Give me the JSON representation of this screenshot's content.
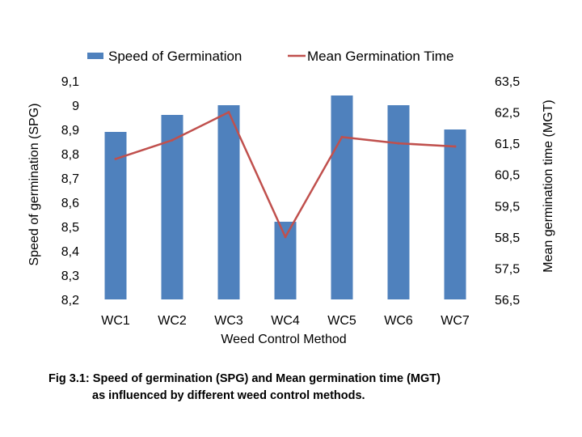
{
  "chart_data": {
    "type": "bar+line",
    "title": "",
    "categories": [
      "WC1",
      "WC2",
      "WC3",
      "WC4",
      "WC5",
      "WC6",
      "WC7"
    ],
    "xlabel": "Weed Control Method",
    "ylabel": "Speed of germination (SPG)",
    "y2label": "Mean germination time (MGT)",
    "ylim": [
      8.2,
      9.1
    ],
    "y2lim": [
      56.5,
      63.5
    ],
    "yticks": [
      "8,2",
      "8,3",
      "8,4",
      "8,5",
      "8,6",
      "8,7",
      "8,8",
      "8,9",
      "9",
      "9,1"
    ],
    "y2ticks": [
      "56,5",
      "57,5",
      "58,5",
      "59,5",
      "60,5",
      "61,5",
      "62,5",
      "63,5"
    ],
    "legend_position": "top-center",
    "series": [
      {
        "name": "Speed of Germination",
        "kind": "bar",
        "axis": "left",
        "color": "#4F81BD",
        "values": [
          8.89,
          8.96,
          9.0,
          8.52,
          9.04,
          9.0,
          8.9
        ]
      },
      {
        "name": "Mean Germination Time",
        "kind": "line",
        "axis": "right",
        "color": "#C0504D",
        "values": [
          61.0,
          61.6,
          62.5,
          58.5,
          61.7,
          61.5,
          61.4
        ]
      }
    ]
  },
  "caption": {
    "line1": "Fig 3.1: Speed of germination (SPG) and Mean germination time (MGT)",
    "line2": "as influenced by different weed control methods."
  }
}
